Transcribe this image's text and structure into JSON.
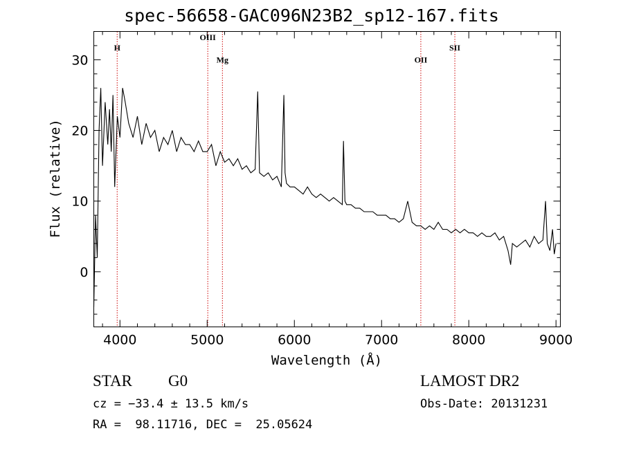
{
  "title": "spec-56658-GAC096N23B2_sp12-167.fits",
  "footer": {
    "class_label": "STAR",
    "subclass_label": "G0",
    "survey_label": "LAMOST DR2",
    "cz_text": "cz = −33.4 ± 13.5 km/s",
    "obs_date_text": "Obs-Date: 20131231",
    "radec_text": "RA =  98.11716, DEC =  25.05624"
  },
  "chart_data": {
    "type": "line",
    "title": "spec-56658-GAC096N23B2_sp12-167.fits",
    "xlabel": "Wavelength (Å)",
    "ylabel": "Flux (relative)",
    "xlim": [
      3700,
      9050
    ],
    "ylim": [
      -7.8,
      34
    ],
    "x_ticks": [
      4000,
      5000,
      6000,
      7000,
      8000,
      9000
    ],
    "y_ticks": [
      0,
      10,
      20,
      30
    ],
    "grid": false,
    "line_color": "#000000",
    "marker_color": "#cc0000",
    "lines": [
      {
        "label": "H",
        "x": 3968,
        "label_y": 31.3
      },
      {
        "label": "OIII",
        "x": 5007,
        "label_y": 32.8
      },
      {
        "label": "Mg",
        "x": 5175,
        "label_y": 29.6
      },
      {
        "label": "OII",
        "x": 7450,
        "label_y": 29.6
      },
      {
        "label": "SII",
        "x": 7840,
        "label_y": 31.3
      }
    ],
    "series": [
      {
        "x": [
          3700,
          3720,
          3740,
          3760,
          3780,
          3800,
          3830,
          3860,
          3880,
          3900,
          3920,
          3940,
          3970,
          4000,
          4030,
          4060,
          4100,
          4150,
          4200,
          4250,
          4300,
          4350,
          4400,
          4450,
          4500,
          4550,
          4600,
          4650,
          4700,
          4750,
          4800,
          4850,
          4900,
          4950,
          5000,
          5050,
          5100,
          5150,
          5200,
          5250,
          5300,
          5350,
          5400,
          5450,
          5500,
          5550,
          5580,
          5600,
          5650,
          5700,
          5750,
          5800,
          5850,
          5880,
          5893,
          5910,
          5950,
          6000,
          6050,
          6100,
          6150,
          6200,
          6250,
          6300,
          6350,
          6400,
          6450,
          6500,
          6550,
          6563,
          6580,
          6600,
          6650,
          6700,
          6750,
          6800,
          6850,
          6900,
          6950,
          7000,
          7050,
          7100,
          7150,
          7200,
          7250,
          7300,
          7350,
          7400,
          7450,
          7500,
          7550,
          7600,
          7650,
          7700,
          7750,
          7800,
          7850,
          7900,
          7950,
          8000,
          8050,
          8100,
          8150,
          8200,
          8250,
          8300,
          8350,
          8400,
          8450,
          8480,
          8500,
          8550,
          8600,
          8650,
          8700,
          8750,
          8800,
          8850,
          8880,
          8900,
          8930,
          8960,
          8980,
          9000
        ],
        "y": [
          -5,
          8,
          2,
          20,
          26,
          15,
          24,
          18,
          23,
          17,
          25,
          12,
          22,
          19,
          26,
          24,
          21,
          19,
          22,
          18,
          21,
          19,
          20,
          17,
          19,
          18,
          20,
          17,
          19,
          18,
          18,
          17,
          18.5,
          17,
          17,
          18,
          15,
          17,
          15.5,
          16,
          15,
          16,
          14.5,
          15,
          14,
          14.5,
          25.5,
          14,
          13.5,
          14,
          13,
          13.5,
          12,
          25,
          14,
          12.5,
          12,
          12,
          11.5,
          11,
          12,
          11,
          10.5,
          11,
          10.5,
          10,
          10.5,
          10,
          9.5,
          18.5,
          10,
          9.5,
          9.5,
          9,
          9,
          8.5,
          8.5,
          8.5,
          8,
          8,
          8,
          7.5,
          7.5,
          7,
          7.5,
          10,
          7,
          6.5,
          6.5,
          6,
          6.5,
          6,
          7,
          6,
          6,
          5.5,
          6,
          5.5,
          6,
          5.5,
          5.5,
          5,
          5.5,
          5,
          5,
          5.5,
          4.5,
          5,
          3,
          1,
          4,
          3.5,
          4,
          4.5,
          3.5,
          5,
          4,
          4.5,
          10,
          4,
          3,
          6,
          2.5,
          4
        ]
      }
    ]
  }
}
